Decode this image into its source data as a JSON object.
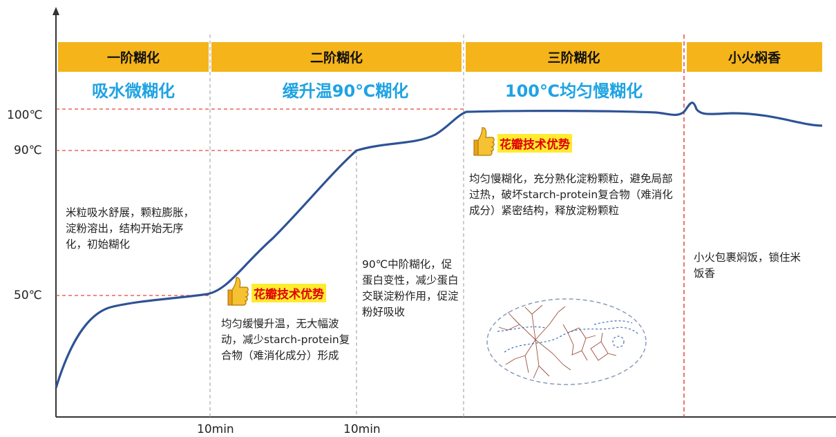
{
  "stages": [
    {
      "label": "一阶糊化"
    },
    {
      "label": "二阶糊化"
    },
    {
      "label": "三阶糊化"
    },
    {
      "label": "小火焖香"
    }
  ],
  "subtitles": [
    {
      "label": "吸水微糊化"
    },
    {
      "label": "缓升温90℃糊化"
    },
    {
      "label": "100℃均匀慢糊化"
    }
  ],
  "y_axis": {
    "ticks": [
      "100℃",
      "90℃",
      "50℃"
    ]
  },
  "x_axis": {
    "ticks": [
      "10min",
      "10min"
    ]
  },
  "notes": {
    "stage1": "米粒吸水舒展，颗粒膨胀，淀粉溶出，结构开始无序化，初始糊化",
    "stage2a": "均匀缓慢升温，无大幅波动，减少starch-protein复合物（难消化成分）形成",
    "stage2b": "90℃中阶糊化，促蛋白变性，减少蛋白交联淀粉作用，促淀粉好吸收",
    "stage3": "均匀慢糊化，充分熟化淀粉颗粒，避免局部过热，破坏starch-protein复合物（难消化成分）紧密结构，释放淀粉颗粒",
    "stage4": "小火包裹焖饭，锁住米饭香"
  },
  "badges": [
    {
      "label": "花瓣技术优势",
      "icon": "thumbs-up-icon"
    },
    {
      "label": "花瓣技术优势",
      "icon": "thumbs-up-icon"
    }
  ],
  "colors": {
    "stage_bar": "#F4B41A",
    "subtitle": "#1FA3E3",
    "curve": "#2E5395",
    "divider_gray": "#999999",
    "divider_red": "#E8453C",
    "badge_bg": "#FFEB2F",
    "badge_text": "#E00000"
  }
}
